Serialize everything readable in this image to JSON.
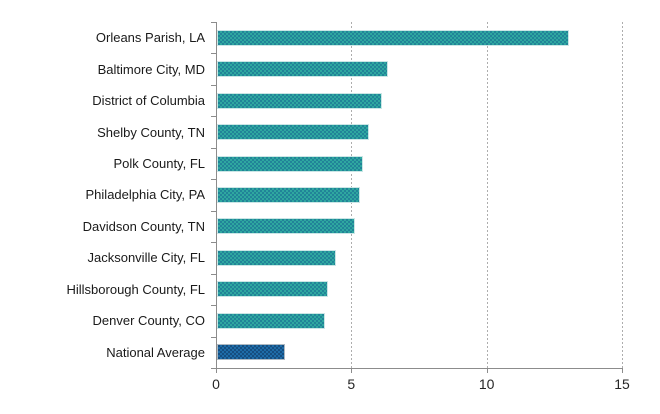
{
  "chart_data": {
    "type": "bar",
    "orientation": "horizontal",
    "title": "",
    "xlabel": "",
    "ylabel": "",
    "categories": [
      "Orleans Parish, LA",
      "Baltimore City, MD",
      "District of Columbia",
      "Shelby County, TN",
      "Polk County, FL",
      "Philadelphia City, PA",
      "Davidson County, TN",
      "Jacksonville City, FL",
      "Hillsborough County, FL",
      "Denver County, CO",
      "National Average"
    ],
    "values": [
      13.0,
      6.3,
      6.1,
      5.6,
      5.4,
      5.3,
      5.1,
      4.4,
      4.1,
      4.0,
      2.5
    ],
    "xlim": [
      0,
      15
    ],
    "xticks": [
      0,
      5,
      10,
      15
    ],
    "xtick_labels": [
      "0",
      "5",
      "10",
      "15"
    ],
    "grid": "vertical-dashed",
    "legend": "none",
    "bar_fill_pattern": "dotted",
    "colors": {
      "bar_color": "#2FA7A0",
      "bar_dot_color": "#1F7E97",
      "bar_border_color": "#CBE6E6",
      "highlight_color": "#1E6CA8",
      "highlight_dot_color": "#14497A",
      "highlight_border_color": "#AEB9C2",
      "axis_color": "#8C8C8C",
      "gridline_color": "#ADADAD",
      "label_color": "#1A1A1A"
    },
    "highlight_index": 10
  }
}
